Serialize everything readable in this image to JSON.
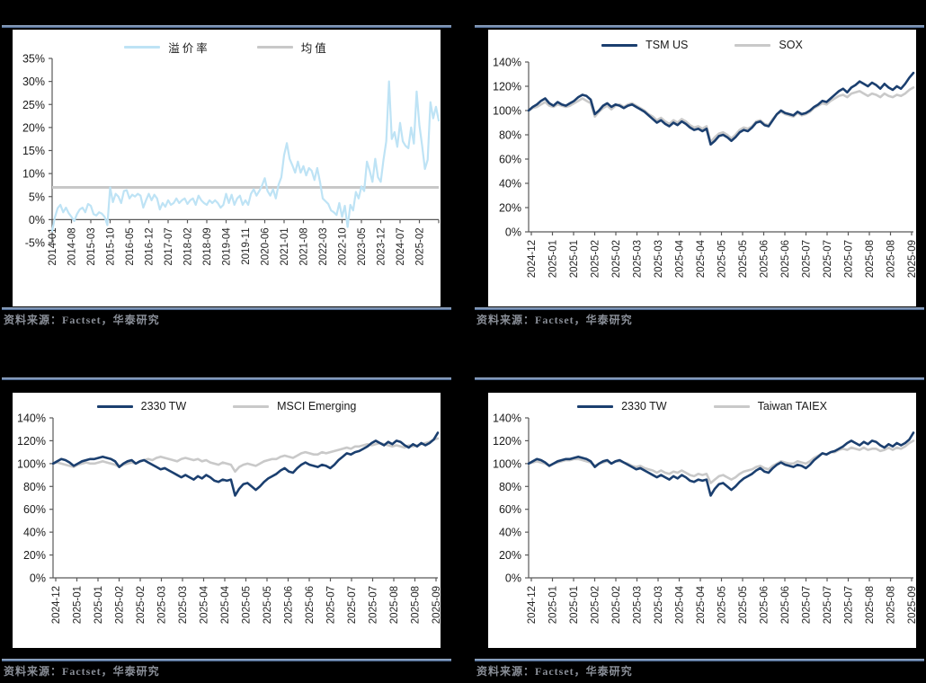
{
  "page": {
    "background": "#000000"
  },
  "colors": {
    "accent_navy": "#1b3f6f",
    "light_blue": "#bee3f5",
    "series_gray": "#c9c9c9",
    "axis": "#595959",
    "separator_blue": "#3c5a86",
    "source_text": "#8a8f98"
  },
  "source_label": "资料来源：Factset，华泰研究",
  "chart_data": [
    {
      "type": "line",
      "title": "",
      "legend_position": "top",
      "grid": false,
      "y_ticks": [
        "35%",
        "30%",
        "25%",
        "20%",
        "15%",
        "10%",
        "5%",
        "0%",
        "-5%"
      ],
      "ylim": [
        -5,
        35
      ],
      "x_labels": [
        "2014-01",
        "2014-08",
        "2015-03",
        "2015-10",
        "2016-05",
        "2016-12",
        "2017-07",
        "2018-02",
        "2018-09",
        "2019-04",
        "2019-11",
        "2020-06",
        "2021-01",
        "2021-08",
        "2022-03",
        "2022-10",
        "2023-05",
        "2023-12",
        "2024-07",
        "2025-02"
      ],
      "mean_line": {
        "name": "均值",
        "value": 7,
        "color": "#c8c8c8"
      },
      "series": [
        {
          "name": "溢价率",
          "color": "#bee3f5",
          "width": 2.2,
          "values": [
            -2.5,
            0.5,
            2.5,
            3.2,
            1.6,
            2.6,
            1.4,
            0.6,
            -0.3,
            1.2,
            2.2,
            2.6,
            1.6,
            3.4,
            3.0,
            1.2,
            0.9,
            1.6,
            1.3,
            0.6,
            -1.2,
            7.0,
            3.8,
            5.6,
            5.0,
            3.6,
            6.2,
            6.4,
            4.6,
            5.4,
            5.0,
            5.6,
            5.2,
            2.6,
            4.2,
            5.6,
            4.2,
            5.4,
            4.6,
            2.2,
            3.6,
            2.8,
            4.2,
            3.2,
            3.6,
            4.6,
            3.6,
            4.2,
            4.6,
            3.4,
            4.2,
            4.6,
            3.2,
            5.2,
            4.2,
            3.6,
            3.2,
            4.2,
            3.6,
            4.2,
            3.6,
            2.6,
            3.2,
            5.6,
            3.6,
            5.4,
            3.2,
            4.6,
            5.2,
            3.2,
            4.2,
            3.2,
            5.6,
            6.6,
            5.2,
            6.2,
            7.4,
            9.0,
            6.2,
            5.2,
            6.6,
            4.6,
            7.6,
            9.2,
            14.0,
            16.6,
            13.2,
            11.8,
            10.2,
            12.6,
            10.2,
            11.6,
            9.6,
            11.2,
            10.6,
            8.6,
            11.2,
            8.2,
            4.6,
            4.0,
            3.4,
            2.0,
            1.6,
            1.0,
            3.6,
            0.6,
            3.0,
            -1.6,
            3.2,
            2.0,
            6.0,
            4.6,
            7.2,
            6.2,
            12.6,
            10.6,
            8.2,
            13.2,
            9.2,
            8.2,
            13.0,
            17.0,
            30.0,
            17.5,
            19.0,
            15.8,
            21.0,
            17.0,
            16.0,
            15.5,
            20.0,
            16.5,
            27.8,
            20.5,
            16.0,
            11.0,
            13.0,
            25.5,
            22.0,
            24.5,
            21.5
          ]
        }
      ],
      "source": "资料来源：Factset，华泰研究"
    },
    {
      "type": "line",
      "title": "",
      "legend_position": "top",
      "grid": false,
      "y_ticks": [
        "140%",
        "120%",
        "100%",
        "80%",
        "60%",
        "40%",
        "20%",
        "0%"
      ],
      "ylim": [
        0,
        140
      ],
      "x_labels": [
        "2024-12",
        "2025-01",
        "2025-01",
        "2025-02",
        "2025-02",
        "2025-03",
        "2025-03",
        "2025-04",
        "2025-04",
        "2025-05",
        "2025-05",
        "2025-06",
        "2025-06",
        "2025-07",
        "2025-07",
        "2025-07",
        "2025-08",
        "2025-08",
        "2025-09"
      ],
      "series": [
        {
          "name": "TSM US",
          "color": "#1b3f6f",
          "width": 2.6,
          "values": [
            100,
            103,
            105,
            108,
            110,
            106,
            104,
            107,
            105,
            104,
            106,
            108,
            111,
            113,
            112,
            109,
            97,
            100,
            104,
            106,
            103,
            105,
            104,
            102,
            104,
            105,
            103,
            101,
            99,
            96,
            93,
            90,
            92,
            89,
            87,
            90,
            88,
            91,
            89,
            86,
            84,
            85,
            83,
            85,
            72,
            75,
            79,
            80,
            78,
            75,
            78,
            82,
            84,
            83,
            86,
            90,
            91,
            88,
            87,
            92,
            97,
            100,
            98,
            97,
            96,
            99,
            97,
            98,
            100,
            103,
            105,
            108,
            107,
            110,
            113,
            116,
            118,
            115,
            119,
            121,
            124,
            122,
            120,
            123,
            121,
            118,
            122,
            119,
            117,
            120,
            118,
            122,
            127,
            131
          ]
        },
        {
          "name": "SOX",
          "color": "#c9c9c9",
          "width": 2.6,
          "values": [
            100,
            102,
            103,
            105,
            107,
            104,
            103,
            105,
            104,
            103,
            104,
            106,
            108,
            110,
            108,
            106,
            95,
            99,
            102,
            104,
            101,
            104,
            105,
            103,
            105,
            106,
            104,
            102,
            100,
            97,
            95,
            92,
            94,
            91,
            89,
            92,
            90,
            93,
            91,
            88,
            86,
            87,
            85,
            87,
            74,
            78,
            81,
            82,
            80,
            77,
            80,
            84,
            86,
            85,
            87,
            91,
            92,
            89,
            88,
            93,
            97,
            99,
            97,
            96,
            95,
            98,
            96,
            97,
            99,
            102,
            104,
            106,
            105,
            108,
            110,
            112,
            113,
            111,
            114,
            115,
            116,
            114,
            112,
            114,
            113,
            111,
            114,
            112,
            111,
            113,
            112,
            114,
            117,
            119
          ]
        }
      ],
      "source": "资料来源：Factset，华泰研究"
    },
    {
      "type": "line",
      "title": "",
      "legend_position": "top",
      "grid": false,
      "y_ticks": [
        "140%",
        "120%",
        "100%",
        "80%",
        "60%",
        "40%",
        "20%",
        "0%"
      ],
      "ylim": [
        0,
        140
      ],
      "x_labels": [
        "2024-12",
        "2025-01",
        "2025-01",
        "2025-02",
        "2025-02",
        "2025-03",
        "2025-03",
        "2025-04",
        "2025-04",
        "2025-05",
        "2025-05",
        "2025-06",
        "2025-06",
        "2025-07",
        "2025-07",
        "2025-07",
        "2025-08",
        "2025-08",
        "2025-09"
      ],
      "series": [
        {
          "name": "2330 TW",
          "color": "#1b3f6f",
          "width": 2.6,
          "values": [
            100,
            102,
            104,
            103,
            101,
            98,
            100,
            102,
            103,
            104,
            104,
            105,
            106,
            105,
            104,
            102,
            97,
            100,
            102,
            103,
            100,
            102,
            103,
            101,
            99,
            97,
            95,
            96,
            94,
            92,
            90,
            88,
            90,
            88,
            86,
            89,
            87,
            90,
            88,
            85,
            84,
            86,
            85,
            86,
            72,
            78,
            82,
            83,
            80,
            77,
            80,
            84,
            87,
            89,
            91,
            94,
            96,
            93,
            92,
            96,
            99,
            101,
            99,
            98,
            97,
            99,
            98,
            96,
            99,
            103,
            106,
            109,
            108,
            110,
            111,
            113,
            115,
            118,
            120,
            118,
            116,
            119,
            117,
            120,
            119,
            116,
            114,
            117,
            115,
            118,
            116,
            118,
            121,
            127
          ]
        },
        {
          "name": "MSCI Emerging",
          "color": "#c9c9c9",
          "width": 2.6,
          "values": [
            100,
            101,
            100,
            99,
            98,
            97,
            99,
            100,
            101,
            100,
            100,
            101,
            102,
            101,
            100,
            99,
            97,
            99,
            100,
            101,
            100,
            102,
            103,
            104,
            103,
            105,
            106,
            105,
            104,
            103,
            102,
            104,
            105,
            104,
            103,
            104,
            102,
            103,
            101,
            100,
            99,
            101,
            100,
            99,
            93,
            97,
            99,
            100,
            99,
            98,
            100,
            102,
            103,
            104,
            104,
            106,
            107,
            106,
            105,
            107,
            109,
            110,
            109,
            108,
            108,
            110,
            109,
            110,
            111,
            112,
            113,
            114,
            113,
            115,
            115,
            116,
            117,
            116,
            117,
            118,
            117,
            116,
            115,
            116,
            115,
            114,
            116,
            115,
            116,
            117,
            118,
            119,
            121,
            122
          ]
        }
      ],
      "source": "资料来源：Factset，华泰研究"
    },
    {
      "type": "line",
      "title": "",
      "legend_position": "top",
      "grid": false,
      "y_ticks": [
        "140%",
        "120%",
        "100%",
        "80%",
        "60%",
        "40%",
        "20%",
        "0%"
      ],
      "ylim": [
        0,
        140
      ],
      "x_labels": [
        "2024-12",
        "2025-01",
        "2025-01",
        "2025-02",
        "2025-02",
        "2025-03",
        "2025-03",
        "2025-04",
        "2025-04",
        "2025-05",
        "2025-05",
        "2025-06",
        "2025-06",
        "2025-07",
        "2025-07",
        "2025-07",
        "2025-08",
        "2025-08",
        "2025-09"
      ],
      "series": [
        {
          "name": "2330 TW",
          "color": "#1b3f6f",
          "width": 2.6,
          "values": [
            100,
            102,
            104,
            103,
            101,
            98,
            100,
            102,
            103,
            104,
            104,
            105,
            106,
            105,
            104,
            102,
            97,
            100,
            102,
            103,
            100,
            102,
            103,
            101,
            99,
            97,
            95,
            96,
            94,
            92,
            90,
            88,
            90,
            88,
            86,
            89,
            87,
            90,
            88,
            85,
            84,
            86,
            85,
            86,
            72,
            78,
            82,
            83,
            80,
            77,
            80,
            84,
            87,
            89,
            91,
            94,
            96,
            93,
            92,
            96,
            99,
            101,
            99,
            98,
            97,
            99,
            98,
            96,
            99,
            103,
            106,
            109,
            108,
            110,
            111,
            113,
            115,
            118,
            120,
            118,
            116,
            119,
            117,
            120,
            119,
            116,
            114,
            117,
            115,
            118,
            116,
            118,
            121,
            127
          ]
        },
        {
          "name": "Taiwan TAIEX",
          "color": "#c9c9c9",
          "width": 2.6,
          "values": [
            100,
            101,
            102,
            101,
            100,
            98,
            100,
            101,
            102,
            103,
            103,
            104,
            104,
            103,
            102,
            101,
            98,
            100,
            101,
            102,
            100,
            102,
            102,
            101,
            100,
            98,
            97,
            98,
            96,
            95,
            94,
            92,
            94,
            92,
            91,
            93,
            92,
            94,
            92,
            90,
            89,
            91,
            90,
            91,
            83,
            86,
            89,
            90,
            88,
            86,
            88,
            91,
            93,
            94,
            95,
            97,
            98,
            96,
            95,
            98,
            100,
            102,
            101,
            100,
            100,
            102,
            101,
            100,
            102,
            105,
            107,
            109,
            108,
            110,
            110,
            112,
            113,
            112,
            114,
            113,
            112,
            114,
            112,
            113,
            113,
            111,
            112,
            114,
            112,
            114,
            113,
            115,
            118,
            120
          ]
        }
      ],
      "source": "资料来源：Factset，华泰研究"
    }
  ]
}
